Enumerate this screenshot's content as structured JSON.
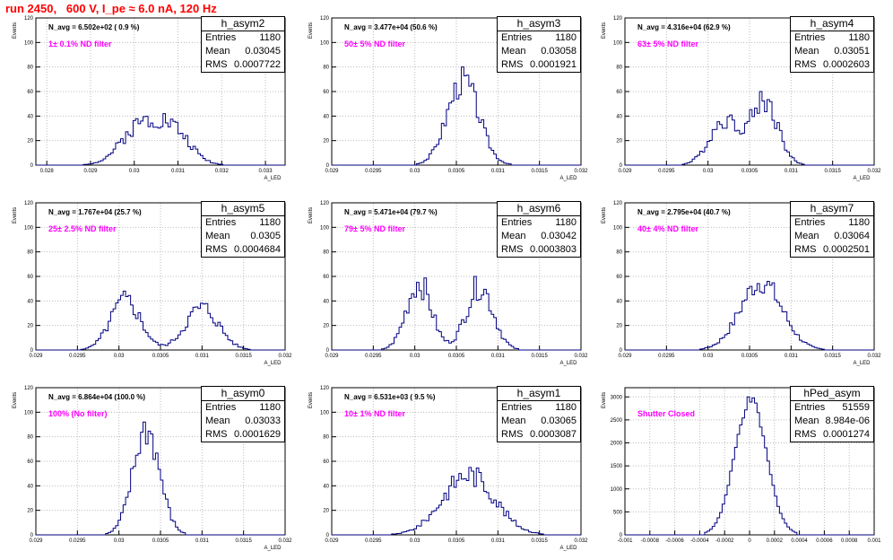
{
  "run_title": "run 2450,   600 V, I_pe ≈ 6.0 nA, 120 Hz",
  "stat_labels": {
    "entries": "Entries",
    "mean": "Mean",
    "rms": "RMS"
  },
  "chart_data": [
    {
      "id": "h_asym2",
      "type": "histogram",
      "title": "h_asym2",
      "entries": "1180",
      "mean": "0.03045",
      "rms": "0.0007722",
      "n_avg": "N_avg = 6.502e+02 ( 0.9 %)",
      "filter": "1± 0.1% ND filter",
      "xlabel": "A_LED",
      "ylabel": "Events",
      "xlim": [
        0.02775,
        0.03345
      ],
      "ylim": [
        0,
        120
      ],
      "xticks": [
        0.028,
        0.029,
        0.03,
        0.031,
        0.032,
        0.033
      ],
      "xtick_labels": [
        "0.028",
        "0.029",
        "0.03",
        "0.031",
        "0.032",
        "0.033"
      ],
      "yticks": [
        0,
        20,
        40,
        60,
        80,
        100,
        120
      ],
      "ytick_labels": [
        "0",
        "20",
        "40",
        "60",
        "80",
        "100",
        "120"
      ],
      "shape": [
        {
          "mu": 0.03015,
          "sigma": 0.00045,
          "amp": 30
        },
        {
          "mu": 0.0309,
          "sigma": 0.0004,
          "amp": 24
        }
      ],
      "peak": 42,
      "noise": 0.22,
      "seed": 2
    },
    {
      "id": "h_asym3",
      "type": "histogram",
      "title": "h_asym3",
      "entries": "1180",
      "mean": "0.03058",
      "rms": "0.0001921",
      "n_avg": "N_avg = 3.477e+04 (50.6 %)",
      "filter": "50± 5% ND filter",
      "xlabel": "A_LED",
      "ylabel": "Events",
      "xlim": [
        0.029,
        0.032
      ],
      "ylim": [
        0,
        120
      ],
      "xticks": [
        0.029,
        0.0295,
        0.03,
        0.0305,
        0.031,
        0.0315,
        0.032
      ],
      "xtick_labels": [
        "0.029",
        "0.0295",
        "0.03",
        "0.0305",
        "0.031",
        "0.0315",
        "0.032"
      ],
      "yticks": [
        0,
        20,
        40,
        60,
        80,
        100,
        120
      ],
      "ytick_labels": [
        "0",
        "20",
        "40",
        "60",
        "80",
        "100",
        "120"
      ],
      "shape": [
        {
          "mu": 0.03058,
          "sigma": 0.00019,
          "amp": 1
        }
      ],
      "peak": 80,
      "noise": 0.18,
      "seed": 3
    },
    {
      "id": "h_asym4",
      "type": "histogram",
      "title": "h_asym4",
      "entries": "1180",
      "mean": "0.03051",
      "rms": "0.0002603",
      "n_avg": "N_avg = 4.316e+04 (62.9 %)",
      "filter": "63± 5% ND filter",
      "xlabel": "A_LED",
      "ylabel": "Events",
      "xlim": [
        0.029,
        0.032
      ],
      "ylim": [
        0,
        120
      ],
      "xticks": [
        0.029,
        0.0295,
        0.03,
        0.0305,
        0.031,
        0.0315,
        0.032
      ],
      "xtick_labels": [
        "0.029",
        "0.0295",
        "0.03",
        "0.0305",
        "0.031",
        "0.0315",
        "0.032"
      ],
      "yticks": [
        0,
        20,
        40,
        60,
        80,
        100,
        120
      ],
      "ytick_labels": [
        "0",
        "20",
        "40",
        "60",
        "80",
        "100",
        "120"
      ],
      "shape": [
        {
          "mu": 0.0302,
          "sigma": 0.00018,
          "amp": 0.7
        },
        {
          "mu": 0.03068,
          "sigma": 0.00016,
          "amp": 1
        }
      ],
      "peak": 60,
      "noise": 0.2,
      "seed": 4
    },
    {
      "id": "h_asym5",
      "type": "histogram",
      "title": "h_asym5",
      "entries": "1180",
      "mean": "0.0305",
      "rms": "0.0004684",
      "n_avg": "N_avg = 1.767e+04 (25.7 %)",
      "filter": "25± 2.5% ND filter",
      "xlabel": "A_LED",
      "ylabel": "Events",
      "xlim": [
        0.029,
        0.032
      ],
      "ylim": [
        0,
        120
      ],
      "xticks": [
        0.029,
        0.0295,
        0.03,
        0.0305,
        0.031,
        0.0315,
        0.032
      ],
      "xtick_labels": [
        "0.029",
        "0.0295",
        "0.03",
        "0.0305",
        "0.031",
        "0.0315",
        "0.032"
      ],
      "yticks": [
        0,
        20,
        40,
        60,
        80,
        100,
        120
      ],
      "ytick_labels": [
        "0",
        "20",
        "40",
        "60",
        "80",
        "100",
        "120"
      ],
      "shape": [
        {
          "mu": 0.03008,
          "sigma": 0.00018,
          "amp": 1
        },
        {
          "mu": 0.031,
          "sigma": 0.0002,
          "amp": 0.85
        }
      ],
      "peak": 48,
      "noise": 0.22,
      "seed": 5
    },
    {
      "id": "h_asym6",
      "type": "histogram",
      "title": "h_asym6",
      "entries": "1180",
      "mean": "0.03042",
      "rms": "0.0003803",
      "n_avg": "N_avg = 5.471e+04 (79.7 %)",
      "filter": "79± 5% ND filter",
      "xlabel": "A_LED",
      "ylabel": "Events",
      "xlim": [
        0.029,
        0.032
      ],
      "ylim": [
        0,
        120
      ],
      "xticks": [
        0.029,
        0.0295,
        0.03,
        0.0305,
        0.031,
        0.0315,
        0.032
      ],
      "xtick_labels": [
        "0.029",
        "0.0295",
        "0.03",
        "0.0305",
        "0.031",
        "0.0315",
        "0.032"
      ],
      "yticks": [
        0,
        20,
        40,
        60,
        80,
        100,
        120
      ],
      "ytick_labels": [
        "0",
        "20",
        "40",
        "60",
        "80",
        "100",
        "120"
      ],
      "shape": [
        {
          "mu": 0.03005,
          "sigma": 0.00015,
          "amp": 1
        },
        {
          "mu": 0.03078,
          "sigma": 0.00016,
          "amp": 0.95
        }
      ],
      "peak": 60,
      "noise": 0.22,
      "seed": 6
    },
    {
      "id": "h_asym7",
      "type": "histogram",
      "title": "h_asym7",
      "entries": "1180",
      "mean": "0.03064",
      "rms": "0.0002501",
      "n_avg": "N_avg = 2.795e+04 (40.7 %)",
      "filter": "40± 4% ND filter",
      "xlabel": "A_LED",
      "ylabel": "Events",
      "xlim": [
        0.029,
        0.032
      ],
      "ylim": [
        0,
        120
      ],
      "xticks": [
        0.029,
        0.0295,
        0.03,
        0.0305,
        0.031,
        0.0315,
        0.032
      ],
      "xtick_labels": [
        "0.029",
        "0.0295",
        "0.03",
        "0.0305",
        "0.031",
        "0.0315",
        "0.032"
      ],
      "yticks": [
        0,
        20,
        40,
        60,
        80,
        100,
        120
      ],
      "ytick_labels": [
        "0",
        "20",
        "40",
        "60",
        "80",
        "100",
        "120"
      ],
      "shape": [
        {
          "mu": 0.03064,
          "sigma": 0.00025,
          "amp": 1
        }
      ],
      "peak": 56,
      "noise": 0.18,
      "seed": 7
    },
    {
      "id": "h_asym0",
      "type": "histogram",
      "title": "h_asym0",
      "entries": "1180",
      "mean": "0.03033",
      "rms": "0.0001629",
      "n_avg": "N_avg = 6.864e+04 (100.0 %)",
      "filter": "100% (No filter)",
      "xlabel": "A_LED",
      "ylabel": "Events",
      "xlim": [
        0.029,
        0.032
      ],
      "ylim": [
        0,
        120
      ],
      "xticks": [
        0.029,
        0.0295,
        0.03,
        0.0305,
        0.031,
        0.0315,
        0.032
      ],
      "xtick_labels": [
        "0.029",
        "0.0295",
        "0.03",
        "0.0305",
        "0.031",
        "0.0315",
        "0.032"
      ],
      "yticks": [
        0,
        20,
        40,
        60,
        80,
        100,
        120
      ],
      "ytick_labels": [
        "0",
        "20",
        "40",
        "60",
        "80",
        "100",
        "120"
      ],
      "shape": [
        {
          "mu": 0.03033,
          "sigma": 0.00016,
          "amp": 1
        }
      ],
      "peak": 92,
      "noise": 0.18,
      "seed": 8
    },
    {
      "id": "h_asym1",
      "type": "histogram",
      "title": "h_asym1",
      "entries": "1180",
      "mean": "0.03065",
      "rms": "0.0003087",
      "n_avg": "N_avg = 6.531e+03 ( 9.5 %)",
      "filter": "10± 1% ND filter",
      "xlabel": "A_LED",
      "ylabel": "Events",
      "xlim": [
        0.029,
        0.032
      ],
      "ylim": [
        0,
        120
      ],
      "xticks": [
        0.029,
        0.0295,
        0.03,
        0.0305,
        0.031,
        0.0315,
        0.032
      ],
      "xtick_labels": [
        "0.029",
        "0.0295",
        "0.03",
        "0.0305",
        "0.031",
        "0.0315",
        "0.032"
      ],
      "yticks": [
        0,
        20,
        40,
        60,
        80,
        100,
        120
      ],
      "ytick_labels": [
        "0",
        "20",
        "40",
        "60",
        "80",
        "100",
        "120"
      ],
      "shape": [
        {
          "mu": 0.03065,
          "sigma": 0.00031,
          "amp": 1
        }
      ],
      "peak": 55,
      "noise": 0.2,
      "seed": 9
    },
    {
      "id": "hPed_asym",
      "type": "histogram",
      "title": "hPed_asym",
      "entries": "51559",
      "mean": "8.984e-06",
      "rms": "0.0001274",
      "n_avg": "",
      "filter": "Shutter Closed",
      "xlabel": "",
      "ylabel": "Events",
      "xlim": [
        -0.001,
        0.001
      ],
      "ylim": [
        0,
        3200
      ],
      "xticks": [
        -0.001,
        -0.0008,
        -0.0006,
        -0.0004,
        -0.0002,
        0,
        0.0002,
        0.0004,
        0.0006,
        0.0008,
        0.001
      ],
      "xtick_labels": [
        "-0.001",
        "-0.0008",
        "-0.0006",
        "-0.0004",
        "-0.0002",
        "0",
        "0.0002",
        "0.0004",
        "0.0006",
        "0.0008",
        "0.001"
      ],
      "yticks": [
        0,
        500,
        1000,
        1500,
        2000,
        2500,
        3000
      ],
      "ytick_labels": [
        "0",
        "500",
        "1000",
        "1500",
        "2000",
        "2500",
        "3000"
      ],
      "shape": [
        {
          "mu": 9e-06,
          "sigma": 0.000127,
          "amp": 1
        }
      ],
      "peak": 3000,
      "noise": 0.04,
      "seed": 10
    }
  ]
}
